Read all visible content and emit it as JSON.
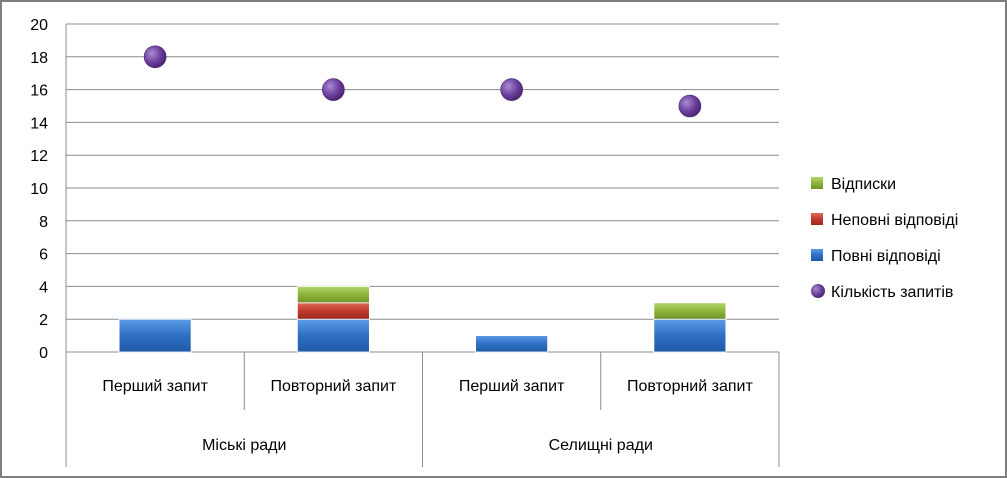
{
  "chart_data": {
    "type": "bar",
    "stacked": true,
    "categories": [
      "Перший запит",
      "Повторний запит",
      "Перший запит",
      "Повторний запит"
    ],
    "groups": [
      {
        "label": "Міські ради",
        "span": [
          0,
          1
        ]
      },
      {
        "label": "Селищні ради",
        "span": [
          2,
          3
        ]
      }
    ],
    "series": [
      {
        "name": "Повні відповіді",
        "kind": "bar",
        "color": "#2e6fc4",
        "values": [
          2,
          2,
          1,
          2
        ]
      },
      {
        "name": "Неповні відповіді",
        "kind": "bar",
        "color": "#c0392b",
        "values": [
          0,
          1,
          0,
          0
        ]
      },
      {
        "name": "Відписки",
        "kind": "bar",
        "color": "#8db43a",
        "values": [
          0,
          1,
          0,
          1
        ]
      },
      {
        "name": "Кількість запитів",
        "kind": "marker",
        "color": "#6a3d9a",
        "values": [
          18,
          16,
          16,
          15
        ]
      }
    ],
    "legend_order": [
      "Відписки",
      "Неповні відповіді",
      "Повні відповіді",
      "Кількість запитів"
    ],
    "ylim": [
      0,
      20
    ],
    "yticks": [
      0,
      2,
      4,
      6,
      8,
      10,
      12,
      14,
      16,
      18,
      20
    ],
    "grid": true,
    "legend_position": "right",
    "title": "",
    "xlabel": "",
    "ylabel": ""
  }
}
